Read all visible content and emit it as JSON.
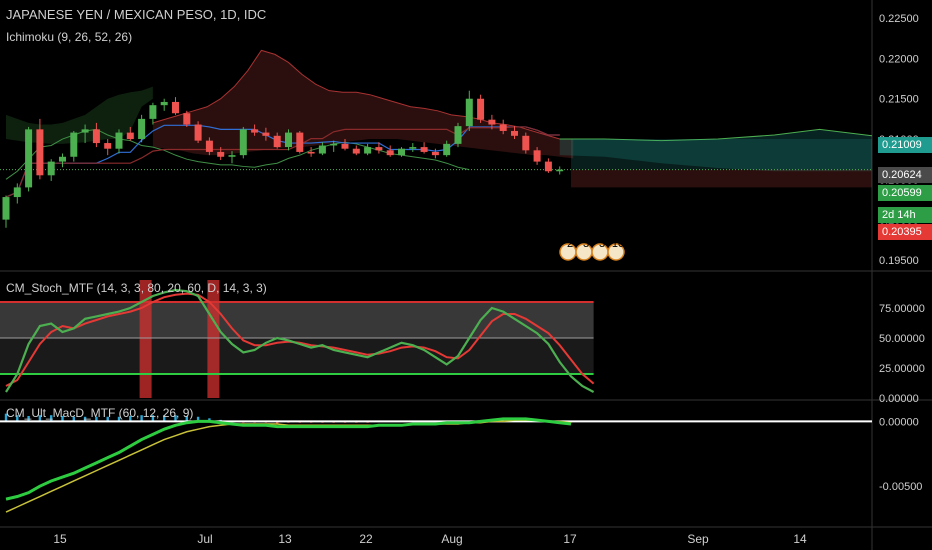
{
  "header": {
    "symbol_title": "JAPANESE YEN / MEXICAN PESO, 1D, IDC",
    "ichimoku_label": "Ichimoku (9, 26, 52, 26)",
    "stoch_label": "CM_Stoch_MTF (14, 3, 3, 80, 20, 60, D, 14, 3, 3)",
    "macd_label": "CM_Ult_MacD_MTF (60, 12, 26, 9)"
  },
  "price_tags": {
    "tag1": "0.21009",
    "tag2": "0.20624",
    "tag3": "0.20599",
    "countdown": "2d 14h",
    "tag4": "0.20395"
  },
  "event_badges": [
    "2",
    "3",
    "3",
    "10"
  ],
  "colors": {
    "up": "#26a69a",
    "candle_up": "#4caf50",
    "candle_down": "#ef5350",
    "tag_teal": "#1f9b8f",
    "tag_grey": "#4a4a4a",
    "tag_green": "#2e9e46",
    "tag_red": "#e53935",
    "stoch_k": "#4caf50",
    "stoch_d": "#e53935"
  },
  "chart_data": [
    {
      "type": "candlestick",
      "title": "JAPANESE YEN / MEXICAN PESO, 1D, IDC",
      "y_ticks": [
        "0.22500",
        "0.22000",
        "0.21500",
        "0.21000",
        "0.20500",
        "0.20000",
        "0.19500"
      ],
      "ylim": [
        0.194,
        0.227
      ],
      "x_ticks": [
        "15",
        "Jul",
        "13",
        "22",
        "Aug",
        "17",
        "Sep",
        "14"
      ],
      "candles": [
        [
          0.2,
          0.203,
          0.199,
          0.2028
        ],
        [
          0.2028,
          0.2045,
          0.202,
          0.204
        ],
        [
          0.204,
          0.2115,
          0.2035,
          0.2112
        ],
        [
          0.2112,
          0.2125,
          0.205,
          0.2055
        ],
        [
          0.2055,
          0.2075,
          0.2048,
          0.2072
        ],
        [
          0.2072,
          0.2082,
          0.2065,
          0.2078
        ],
        [
          0.2078,
          0.211,
          0.2072,
          0.2108
        ],
        [
          0.2108,
          0.2118,
          0.2095,
          0.2112
        ],
        [
          0.2112,
          0.212,
          0.209,
          0.2095
        ],
        [
          0.2095,
          0.21,
          0.208,
          0.2088
        ],
        [
          0.2088,
          0.2112,
          0.2082,
          0.2108
        ],
        [
          0.2108,
          0.2115,
          0.2098,
          0.21
        ],
        [
          0.21,
          0.213,
          0.2096,
          0.2125
        ],
        [
          0.2125,
          0.2145,
          0.2118,
          0.2142
        ],
        [
          0.2142,
          0.215,
          0.2135,
          0.2146
        ],
        [
          0.2146,
          0.2152,
          0.213,
          0.2132
        ],
        [
          0.2132,
          0.2135,
          0.2115,
          0.2118
        ],
        [
          0.2118,
          0.2122,
          0.2095,
          0.2098
        ],
        [
          0.2098,
          0.2102,
          0.208,
          0.2084
        ],
        [
          0.2084,
          0.209,
          0.2074,
          0.2078
        ],
        [
          0.2078,
          0.2085,
          0.207,
          0.208
        ],
        [
          0.208,
          0.2115,
          0.2076,
          0.2112
        ],
        [
          0.2112,
          0.2118,
          0.2104,
          0.2108
        ],
        [
          0.2108,
          0.2114,
          0.2098,
          0.2104
        ],
        [
          0.2104,
          0.2108,
          0.2088,
          0.209
        ],
        [
          0.209,
          0.2112,
          0.2086,
          0.2108
        ],
        [
          0.2108,
          0.211,
          0.2082,
          0.2084
        ],
        [
          0.2084,
          0.209,
          0.2078,
          0.2082
        ],
        [
          0.2082,
          0.2096,
          0.208,
          0.2092
        ],
        [
          0.2092,
          0.2098,
          0.2084,
          0.2094
        ],
        [
          0.2094,
          0.21,
          0.2086,
          0.2088
        ],
        [
          0.2088,
          0.2092,
          0.208,
          0.2082
        ],
        [
          0.2082,
          0.2094,
          0.208,
          0.209
        ],
        [
          0.209,
          0.2096,
          0.2082,
          0.2086
        ],
        [
          0.2086,
          0.2092,
          0.2078,
          0.208
        ],
        [
          0.208,
          0.209,
          0.2078,
          0.2088
        ],
        [
          0.2088,
          0.2095,
          0.2084,
          0.209
        ],
        [
          0.209,
          0.2096,
          0.2082,
          0.2084
        ],
        [
          0.2084,
          0.2088,
          0.2076,
          0.208
        ],
        [
          0.208,
          0.2098,
          0.2078,
          0.2094
        ],
        [
          0.2094,
          0.212,
          0.209,
          0.2116
        ],
        [
          0.2116,
          0.216,
          0.211,
          0.215
        ],
        [
          0.215,
          0.2155,
          0.212,
          0.2124
        ],
        [
          0.2124,
          0.213,
          0.2112,
          0.2118
        ],
        [
          0.2118,
          0.2124,
          0.2106,
          0.211
        ],
        [
          0.211,
          0.2116,
          0.21,
          0.2104
        ],
        [
          0.2104,
          0.2108,
          0.2082,
          0.2086
        ],
        [
          0.2086,
          0.209,
          0.2068,
          0.2072
        ],
        [
          0.2072,
          0.2076,
          0.2058,
          0.206
        ],
        [
          0.206,
          0.2066,
          0.2056,
          0.2062
        ]
      ]
    },
    {
      "type": "line",
      "title": "CM_Stoch_MTF (14, 3, 3, 80, 20, 60, D, 14, 3, 3)",
      "y_ticks": [
        "75.00000",
        "50.00000",
        "25.00000",
        "0.00000"
      ],
      "ylim": [
        0,
        100
      ],
      "levels": [
        80,
        50,
        20
      ],
      "series": [
        {
          "values": [
            5,
            20,
            45,
            60,
            62,
            55,
            58,
            66,
            68,
            70,
            72,
            75,
            80,
            85,
            88,
            90,
            89,
            85,
            70,
            55,
            45,
            38,
            40,
            46,
            50,
            48,
            45,
            42,
            44,
            40,
            38,
            36,
            34,
            38,
            42,
            46,
            44,
            40,
            34,
            28,
            35,
            50,
            65,
            75,
            72,
            66,
            60,
            54,
            45,
            30,
            18,
            10,
            5
          ]
        },
        {
          "values": [
            10,
            15,
            30,
            45,
            55,
            60,
            58,
            62,
            65,
            68,
            70,
            72,
            75,
            80,
            84,
            86,
            87,
            86,
            80,
            70,
            58,
            48,
            44,
            44,
            46,
            47,
            46,
            44,
            43,
            42,
            40,
            38,
            36,
            37,
            39,
            42,
            43,
            42,
            39,
            34,
            33,
            40,
            52,
            64,
            70,
            70,
            66,
            60,
            54,
            44,
            32,
            20,
            12
          ]
        }
      ],
      "highlight_bars": [
        12,
        18
      ]
    },
    {
      "type": "line",
      "title": "CM_Ult_MacD_MTF (60, 12, 26, 9)",
      "y_ticks": [
        "0.00000",
        "-0.00500"
      ],
      "ylim": [
        -0.008,
        0.0015
      ],
      "series": [
        {
          "values": [
            -0.006,
            -0.0058,
            -0.0055,
            -0.005,
            -0.0046,
            -0.0043,
            -0.004,
            -0.0036,
            -0.0032,
            -0.0028,
            -0.0024,
            -0.0019,
            -0.0014,
            -0.001,
            -0.0006,
            -0.0003,
            -0.0001,
            0.0,
            0.0,
            -0.0001,
            -0.0002,
            -0.0003,
            -0.0003,
            -0.0003,
            -0.0004,
            -0.0004,
            -0.0004,
            -0.0004,
            -0.0004,
            -0.0004,
            -0.0004,
            -0.0004,
            -0.0004,
            -0.0003,
            -0.0003,
            -0.0003,
            -0.0002,
            -0.0002,
            -0.0002,
            -0.0001,
            -0.0001,
            -0.0001,
            0.0,
            0.0001,
            0.0002,
            0.0002,
            0.0002,
            0.0001,
            0.0,
            -0.0001,
            -0.0002
          ]
        },
        {
          "values": [
            -0.007,
            -0.0066,
            -0.0062,
            -0.0058,
            -0.0054,
            -0.005,
            -0.0046,
            -0.0042,
            -0.0038,
            -0.0034,
            -0.003,
            -0.0026,
            -0.0022,
            -0.0018,
            -0.0014,
            -0.0011,
            -0.0008,
            -0.0006,
            -0.0004,
            -0.0003,
            -0.0002,
            -0.0002,
            -0.0002,
            -0.0002,
            -0.0002,
            -0.0003,
            -0.0003,
            -0.0003,
            -0.0003,
            -0.0003,
            -0.0003,
            -0.0003,
            -0.0003,
            -0.0003,
            -0.0003,
            -0.0003,
            -0.0002,
            -0.0002,
            -0.0002,
            -0.0002,
            -0.0002,
            -0.0001,
            -0.0001,
            0.0,
            0.0,
            0.0001,
            0.0001,
            0.0001,
            0.0,
            0.0,
            -0.0001
          ]
        }
      ]
    }
  ]
}
